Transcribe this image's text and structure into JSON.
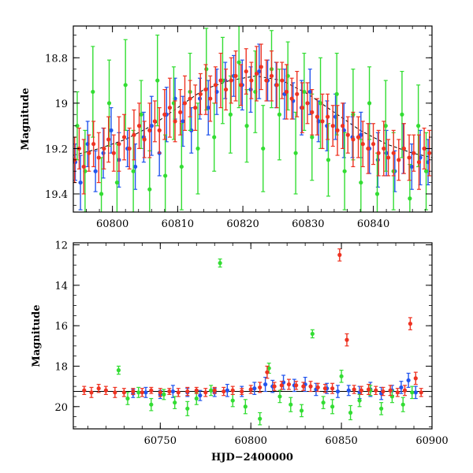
{
  "chart_data": [
    {
      "type": "scatter",
      "title": "",
      "xlabel": "",
      "ylabel": "Magnitude",
      "xlim": [
        60794,
        60849
      ],
      "ylim": [
        19.48,
        18.66
      ],
      "y_inverted": true,
      "grid": false,
      "x_ticks": [
        60800,
        60810,
        60820,
        60830,
        60840
      ],
      "y_ticks": [
        18.8,
        19,
        19.2,
        19.4
      ],
      "x_tick_labels": [
        "60800",
        "60810",
        "60820",
        "60830",
        "60840"
      ],
      "y_tick_labels": [
        "18.8",
        "19",
        "19.2",
        "19.4"
      ],
      "model_curve": {
        "color": "#000000",
        "x": [
          60794,
          60798,
          60802,
          60806,
          60810,
          60814,
          60818,
          60822,
          60826,
          60830,
          60834,
          60838,
          60842,
          60846,
          60849
        ],
        "y": [
          19.23,
          19.2,
          19.16,
          19.1,
          19.02,
          18.94,
          18.9,
          18.88,
          18.9,
          18.96,
          19.04,
          19.12,
          19.18,
          19.22,
          19.24
        ]
      },
      "series": [
        {
          "color": "#2255ee",
          "x": [
            60794.3,
            60795.1,
            60796.2,
            60797.4,
            60798.6,
            60799.8,
            60801.0,
            60802.3,
            60803.5,
            60804.8,
            60806.0,
            60807.2,
            60808.3,
            60809.6,
            60810.8,
            60812.1,
            60813.4,
            60814.7,
            60816.0,
            60817.3,
            60818.6,
            60819.9,
            60821.2,
            60822.5,
            60823.8,
            60825.1,
            60826.4,
            60827.7,
            60829.0,
            60830.3,
            60831.6,
            60832.9,
            60834.2,
            60835.5,
            60836.8,
            60838.1,
            60839.4,
            60840.7,
            60842.0,
            60843.3,
            60844.6,
            60845.9,
            60847.2,
            60848.4
          ],
          "y": [
            19.26,
            19.35,
            19.18,
            19.3,
            19.22,
            19.12,
            19.25,
            19.2,
            19.28,
            19.15,
            19.1,
            19.22,
            19.05,
            18.98,
            19.08,
            19.12,
            18.98,
            19.02,
            18.95,
            18.9,
            18.88,
            18.92,
            18.94,
            18.86,
            18.9,
            18.92,
            18.96,
            18.99,
            19.02,
            18.95,
            19.08,
            19.1,
            19.06,
            19.12,
            19.15,
            19.14,
            19.2,
            19.25,
            19.22,
            19.3,
            19.2,
            19.28,
            19.24,
            19.26
          ],
          "err": [
            0.08,
            0.12,
            0.1,
            0.09,
            0.11,
            0.1,
            0.12,
            0.08,
            0.1,
            0.11,
            0.13,
            0.1,
            0.12,
            0.09,
            0.11,
            0.1,
            0.09,
            0.12,
            0.1,
            0.08,
            0.09,
            0.11,
            0.1,
            0.12,
            0.09,
            0.1,
            0.11,
            0.08,
            0.12,
            0.1,
            0.09,
            0.11,
            0.1,
            0.12,
            0.09,
            0.1,
            0.11,
            0.12,
            0.1,
            0.09,
            0.11,
            0.1,
            0.12,
            0.1
          ]
        },
        {
          "color": "#33dd33",
          "x": [
            60794.6,
            60795.8,
            60797.0,
            60798.3,
            60799.5,
            60800.7,
            60802.0,
            60803.2,
            60804.4,
            60805.7,
            60806.9,
            60808.1,
            60809.4,
            60810.6,
            60811.9,
            60813.1,
            60814.4,
            60815.6,
            60816.9,
            60818.1,
            60819.4,
            60820.6,
            60821.9,
            60823.1,
            60824.4,
            60825.6,
            60826.9,
            60828.1,
            60829.4,
            60830.6,
            60831.9,
            60833.1,
            60834.4,
            60835.6,
            60836.9,
            60838.1,
            60839.4,
            60840.6,
            60841.9,
            60843.1,
            60844.4,
            60845.6,
            60846.9,
            60848.1
          ],
          "y": [
            19.1,
            19.3,
            18.95,
            19.4,
            19.0,
            19.35,
            18.92,
            19.3,
            19.05,
            19.38,
            18.9,
            19.32,
            19.0,
            19.28,
            18.95,
            19.2,
            18.85,
            19.15,
            18.9,
            19.05,
            18.82,
            19.1,
            18.95,
            19.2,
            18.85,
            19.05,
            18.88,
            19.22,
            18.95,
            19.15,
            19.0,
            19.25,
            18.96,
            19.3,
            19.05,
            19.35,
            19.0,
            19.4,
            19.1,
            19.3,
            19.05,
            19.42,
            19.1,
            19.3
          ],
          "err": [
            0.15,
            0.18,
            0.2,
            0.16,
            0.19,
            0.17,
            0.2,
            0.18,
            0.15,
            0.17,
            0.2,
            0.18,
            0.16,
            0.19,
            0.17,
            0.2,
            0.18,
            0.15,
            0.19,
            0.17,
            0.2,
            0.16,
            0.18,
            0.19,
            0.17,
            0.2,
            0.15,
            0.18,
            0.17,
            0.19,
            0.2,
            0.16,
            0.18,
            0.17,
            0.2,
            0.19,
            0.16,
            0.18,
            0.2,
            0.17,
            0.19,
            0.15,
            0.18,
            0.17
          ]
        },
        {
          "color": "#ee3322",
          "x": [
            60794.2,
            60794.9,
            60795.6,
            60796.4,
            60797.1,
            60797.9,
            60798.7,
            60799.4,
            60800.2,
            60801.0,
            60801.8,
            60802.6,
            60803.3,
            60804.1,
            60804.9,
            60805.7,
            60806.5,
            60807.2,
            60808.0,
            60808.8,
            60809.6,
            60810.4,
            60811.1,
            60811.9,
            60812.7,
            60813.5,
            60814.3,
            60815.0,
            60815.8,
            60816.6,
            60817.4,
            60818.2,
            60818.9,
            60819.7,
            60820.5,
            60821.3,
            60822.1,
            60822.8,
            60823.6,
            60824.4,
            60825.2,
            60826.0,
            60826.7,
            60827.5,
            60828.3,
            60829.1,
            60829.9,
            60830.6,
            60831.4,
            60832.2,
            60833.0,
            60833.8,
            60834.5,
            60835.3,
            60836.1,
            60836.9,
            60837.7,
            60838.4,
            60839.2,
            60840.0,
            60840.8,
            60841.6,
            60842.3,
            60843.1,
            60843.9,
            60844.7,
            60845.5,
            60846.2,
            60847.0,
            60847.8,
            60848.6
          ],
          "y": [
            19.25,
            19.2,
            19.28,
            19.22,
            19.18,
            19.24,
            19.2,
            19.16,
            19.22,
            19.18,
            19.15,
            19.2,
            19.14,
            19.1,
            19.16,
            19.12,
            19.08,
            19.12,
            19.05,
            19.02,
            19.08,
            19.04,
            19.0,
            18.98,
            19.02,
            18.96,
            18.94,
            18.98,
            18.92,
            18.9,
            18.94,
            18.9,
            18.88,
            18.92,
            18.86,
            18.9,
            18.87,
            18.84,
            18.9,
            18.88,
            18.92,
            18.9,
            18.95,
            18.98,
            18.96,
            19.02,
            19.0,
            19.04,
            19.06,
            19.08,
            19.06,
            19.1,
            19.12,
            19.1,
            19.14,
            19.16,
            19.15,
            19.18,
            19.2,
            19.18,
            19.22,
            19.2,
            19.24,
            19.22,
            19.25,
            19.2,
            19.24,
            19.22,
            19.26,
            19.2,
            19.22
          ],
          "err": [
            0.1,
            0.09,
            0.12,
            0.08,
            0.1,
            0.11,
            0.09,
            0.1,
            0.08,
            0.12,
            0.1,
            0.09,
            0.11,
            0.1,
            0.08,
            0.12,
            0.09,
            0.1,
            0.11,
            0.13,
            0.09,
            0.1,
            0.12,
            0.08,
            0.1,
            0.09,
            0.11,
            0.1,
            0.08,
            0.12,
            0.09,
            0.1,
            0.11,
            0.09,
            0.1,
            0.08,
            0.12,
            0.1,
            0.09,
            0.11,
            0.1,
            0.08,
            0.12,
            0.09,
            0.1,
            0.11,
            0.09,
            0.1,
            0.08,
            0.12,
            0.1,
            0.09,
            0.11,
            0.1,
            0.08,
            0.12,
            0.09,
            0.1,
            0.11,
            0.09,
            0.1,
            0.12,
            0.08,
            0.1,
            0.09,
            0.11,
            0.1,
            0.08,
            0.12,
            0.09,
            0.1
          ]
        }
      ]
    },
    {
      "type": "scatter",
      "title": "",
      "xlabel": "HJD−2400000",
      "ylabel": "Magnitude",
      "xlim": [
        60702,
        60900
      ],
      "ylim": [
        21.1,
        11.9
      ],
      "y_inverted": true,
      "grid": false,
      "x_ticks": [
        60750,
        60800,
        60850,
        60900
      ],
      "y_ticks": [
        12,
        14,
        16,
        18,
        20
      ],
      "x_tick_labels": [
        "60750",
        "60800",
        "60850",
        "60900"
      ],
      "y_tick_labels": [
        "12",
        "14",
        "16",
        "18",
        "20"
      ],
      "baseline": {
        "y": 19.25,
        "color": "#000000"
      },
      "series": [
        {
          "color": "#2255ee",
          "x": [
            60735,
            60742,
            60750,
            60757,
            60765,
            60772,
            60780,
            60787,
            60795,
            60802,
            60808,
            60812,
            60818,
            60824,
            60830,
            60836,
            60842,
            60848,
            60854,
            60860,
            60866,
            60872,
            60878,
            60883,
            60887,
            60891
          ],
          "y": [
            19.35,
            19.3,
            19.4,
            19.25,
            19.3,
            19.45,
            19.3,
            19.2,
            19.25,
            19.1,
            18.9,
            19.0,
            18.8,
            18.95,
            18.9,
            19.15,
            19.1,
            19.25,
            19.2,
            19.3,
            19.15,
            19.35,
            19.2,
            19.05,
            18.7,
            19.3
          ],
          "err": [
            0.2,
            0.25,
            0.2,
            0.3,
            0.2,
            0.25,
            0.2,
            0.3,
            0.25,
            0.3,
            0.35,
            0.3,
            0.35,
            0.3,
            0.35,
            0.3,
            0.25,
            0.3,
            0.25,
            0.3,
            0.35,
            0.3,
            0.25,
            0.3,
            0.35,
            0.3
          ]
        },
        {
          "color": "#33dd33",
          "x": [
            60727,
            60732,
            60738,
            60745,
            60752,
            60758,
            60765,
            60770,
            60778,
            60783,
            60790,
            60797,
            60805,
            60810,
            60816,
            60822,
            60828,
            60834,
            60840,
            60845,
            60850,
            60855,
            60860,
            60866,
            60872,
            60878,
            60884,
            60889
          ],
          "y": [
            18.2,
            19.6,
            19.3,
            19.9,
            19.4,
            19.8,
            20.1,
            19.6,
            19.2,
            12.9,
            19.7,
            20.0,
            20.6,
            18.1,
            19.5,
            19.9,
            20.2,
            16.4,
            19.8,
            20.0,
            18.5,
            20.3,
            19.7,
            19.2,
            20.1,
            19.5,
            19.9,
            19.3
          ],
          "err": [
            0.2,
            0.3,
            0.25,
            0.3,
            0.25,
            0.3,
            0.35,
            0.3,
            0.25,
            0.2,
            0.3,
            0.35,
            0.3,
            0.25,
            0.3,
            0.35,
            0.3,
            0.2,
            0.3,
            0.35,
            0.3,
            0.35,
            0.3,
            0.25,
            0.3,
            0.3,
            0.35,
            0.3
          ]
        },
        {
          "color": "#ee3322",
          "x": [
            60708,
            60712,
            60716,
            60720,
            60725,
            60730,
            60735,
            60740,
            60745,
            60750,
            60755,
            60760,
            60765,
            60770,
            60775,
            60780,
            60785,
            60790,
            60795,
            60800,
            60805,
            60809,
            60813,
            60817,
            60821,
            60825,
            60829,
            60833,
            60837,
            60841,
            60845,
            60849,
            60853,
            60857,
            60861,
            60865,
            60869,
            60873,
            60877,
            60881,
            60885,
            60888,
            60891,
            60894
          ],
          "y": [
            19.2,
            19.3,
            19.1,
            19.2,
            19.3,
            19.3,
            19.25,
            19.3,
            19.2,
            19.3,
            19.25,
            19.3,
            19.25,
            19.2,
            19.3,
            19.2,
            19.25,
            19.2,
            19.25,
            19.15,
            19.05,
            18.3,
            19.0,
            18.95,
            18.9,
            18.95,
            19.0,
            19.0,
            19.05,
            19.1,
            19.1,
            12.5,
            16.7,
            19.15,
            19.2,
            19.15,
            19.2,
            19.25,
            19.2,
            19.3,
            19.2,
            15.9,
            18.6,
            19.3
          ],
          "err": [
            0.2,
            0.25,
            0.2,
            0.2,
            0.25,
            0.2,
            0.15,
            0.2,
            0.15,
            0.2,
            0.15,
            0.2,
            0.2,
            0.15,
            0.2,
            0.15,
            0.2,
            0.2,
            0.15,
            0.2,
            0.25,
            0.3,
            0.2,
            0.2,
            0.25,
            0.2,
            0.2,
            0.25,
            0.2,
            0.2,
            0.25,
            0.3,
            0.3,
            0.2,
            0.2,
            0.25,
            0.2,
            0.2,
            0.25,
            0.2,
            0.25,
            0.3,
            0.3,
            0.2
          ]
        }
      ]
    }
  ]
}
